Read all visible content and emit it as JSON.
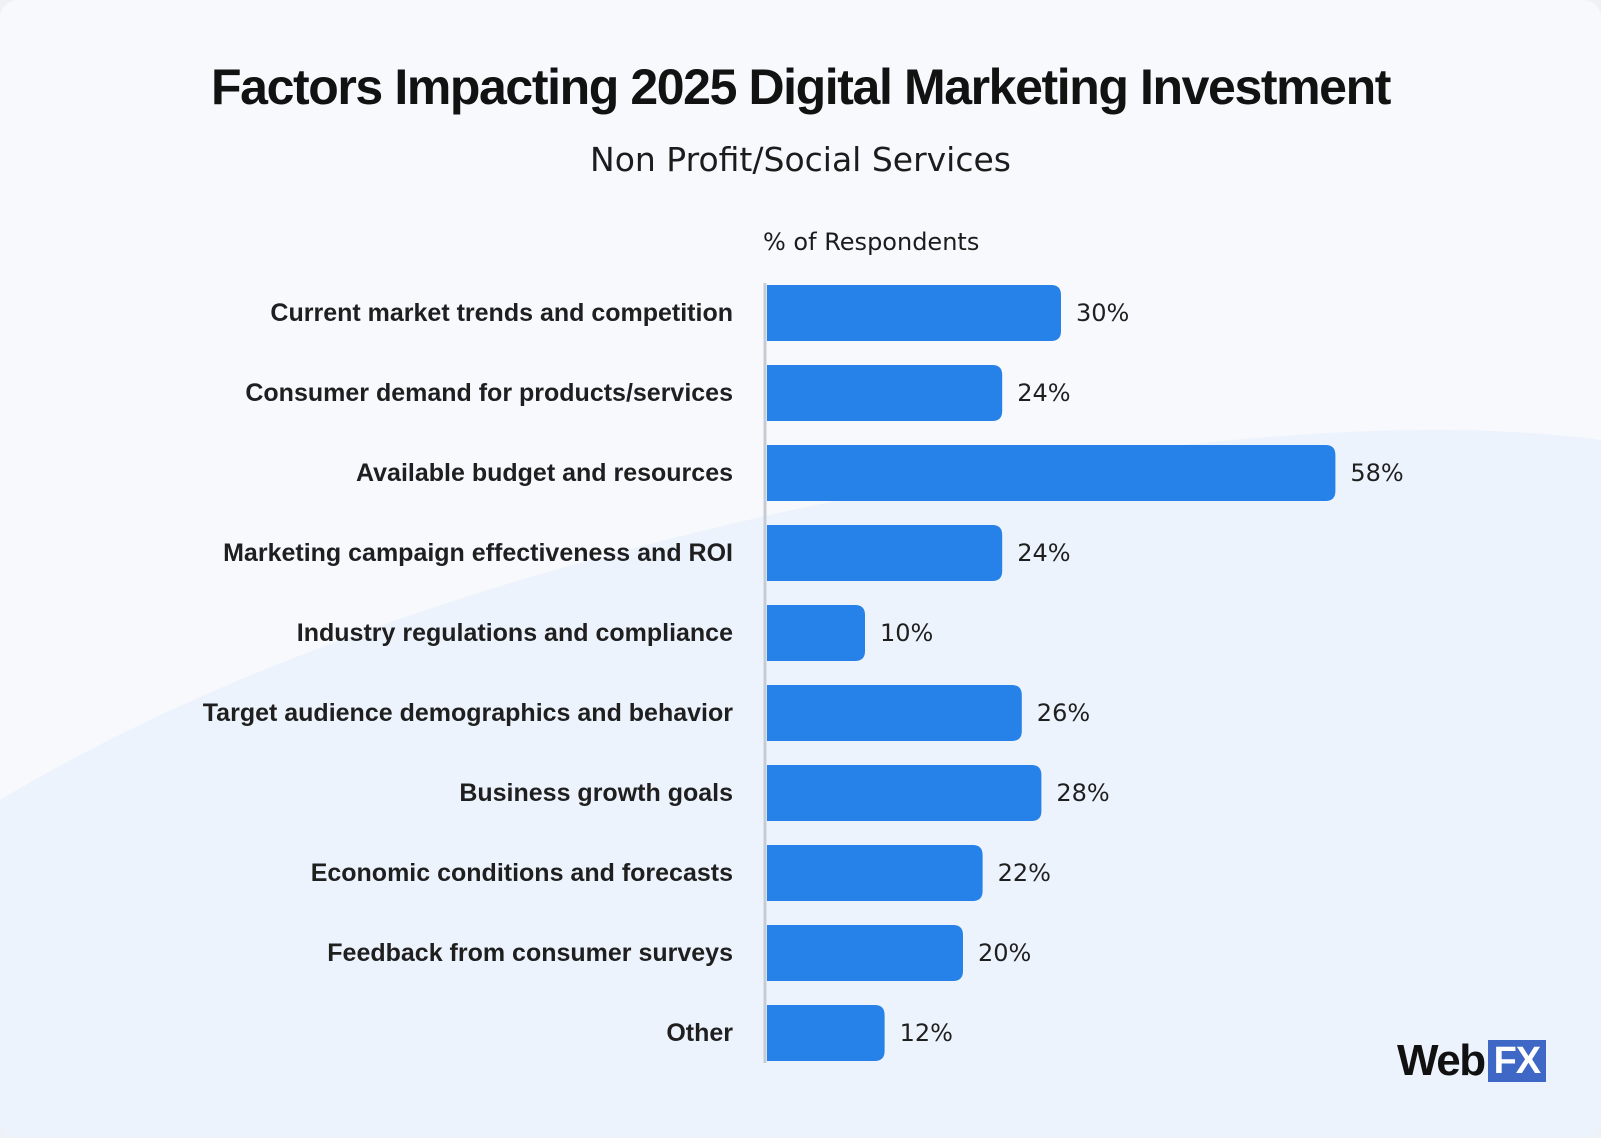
{
  "colors": {
    "bar": "#2681e8",
    "axis": "#c7ccd3",
    "category_label": "#1f1f1f",
    "value_label": "#1f1f1f"
  },
  "logo": {
    "word": "Web",
    "mark": "FX"
  },
  "chart_data": {
    "type": "bar",
    "orientation": "horizontal",
    "title": "Factors Impacting 2025 Digital Marketing Investment",
    "subtitle": "Non Profit/Social Services",
    "xlabel": "% of Respondents",
    "ylabel": "",
    "xlim": [
      0,
      60
    ],
    "grid": false,
    "categories": [
      "Current market trends and competition",
      "Consumer demand for products/services",
      "Available budget and resources",
      "Marketing campaign effectiveness and ROI",
      "Industry regulations and compliance",
      "Target audience demographics and behavior",
      "Business growth goals",
      "Economic conditions and forecasts",
      "Feedback from consumer surveys",
      "Other"
    ],
    "values": [
      30,
      24,
      58,
      24,
      10,
      26,
      28,
      22,
      20,
      12
    ],
    "value_labels": [
      "30%",
      "24%",
      "58%",
      "24%",
      "10%",
      "26%",
      "28%",
      "22%",
      "20%",
      "12%"
    ]
  }
}
